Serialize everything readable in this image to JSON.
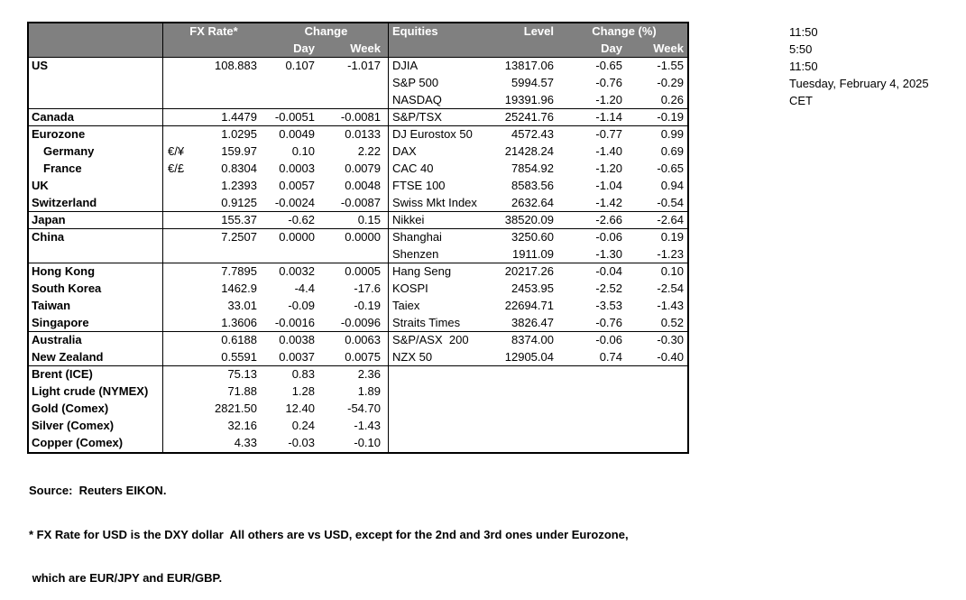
{
  "table": {
    "header": {
      "fx_rate": "FX Rate*",
      "change": "Change",
      "day": "Day",
      "week": "Week",
      "equities": "Equities",
      "level": "Level",
      "change_pct": "Change (%)"
    },
    "rows": [
      {
        "country": "US",
        "indent": false,
        "pair": "",
        "rate": "108.883",
        "day": "0.107",
        "week": "-1.017",
        "equity": "DJIA",
        "level": "13817.06",
        "eday": "-0.65",
        "eweek": "-1.55",
        "sep": false
      },
      {
        "country": "",
        "indent": false,
        "pair": "",
        "rate": "",
        "day": "",
        "week": "",
        "equity": "S&P 500",
        "level": "5994.57",
        "eday": "-0.76",
        "eweek": "-0.29",
        "sep": false
      },
      {
        "country": "",
        "indent": false,
        "pair": "",
        "rate": "",
        "day": "",
        "week": "",
        "equity": "NASDAQ",
        "level": "19391.96",
        "eday": "-1.20",
        "eweek": "0.26",
        "sep": true
      },
      {
        "country": "Canada",
        "indent": false,
        "pair": "",
        "rate": "1.4479",
        "day": "-0.0051",
        "week": "-0.0081",
        "equity": "S&P/TSX",
        "level": "25241.76",
        "eday": "-1.14",
        "eweek": "-0.19",
        "sep": true
      },
      {
        "country": "Eurozone",
        "indent": false,
        "pair": "",
        "rate": "1.0295",
        "day": "0.0049",
        "week": "0.0133",
        "equity": "DJ Eurostox 50",
        "level": "4572.43",
        "eday": "-0.77",
        "eweek": "0.99",
        "sep": false
      },
      {
        "country": "Germany",
        "indent": true,
        "pair": "€/¥",
        "rate": "159.97",
        "day": "0.10",
        "week": "2.22",
        "equity": "DAX",
        "level": "21428.24",
        "eday": "-1.40",
        "eweek": "0.69",
        "sep": false
      },
      {
        "country": "France",
        "indent": true,
        "pair": "€/£",
        "rate": "0.8304",
        "day": "0.0003",
        "week": "0.0079",
        "equity": "CAC 40",
        "level": "7854.92",
        "eday": "-1.20",
        "eweek": "-0.65",
        "sep": false
      },
      {
        "country": "UK",
        "indent": false,
        "pair": "",
        "rate": "1.2393",
        "day": "0.0057",
        "week": "0.0048",
        "equity": "FTSE 100",
        "level": "8583.56",
        "eday": "-1.04",
        "eweek": "0.94",
        "sep": false
      },
      {
        "country": "Switzerland",
        "indent": false,
        "pair": "",
        "rate": "0.9125",
        "day": "-0.0024",
        "week": "-0.0087",
        "equity": "Swiss Mkt Index",
        "level": "2632.64",
        "eday": "-1.42",
        "eweek": "-0.54",
        "sep": true
      },
      {
        "country": "Japan",
        "indent": false,
        "pair": "",
        "rate": "155.37",
        "day": "-0.62",
        "week": "0.15",
        "equity": "Nikkei",
        "level": "38520.09",
        "eday": "-2.66",
        "eweek": "-2.64",
        "sep": true
      },
      {
        "country": "China",
        "indent": false,
        "pair": "",
        "rate": "7.2507",
        "day": "0.0000",
        "week": "0.0000",
        "equity": "Shanghai",
        "level": "3250.60",
        "eday": "-0.06",
        "eweek": "0.19",
        "sep": false
      },
      {
        "country": "",
        "indent": false,
        "pair": "",
        "rate": "",
        "day": "",
        "week": "",
        "equity": "Shenzen",
        "level": "1911.09",
        "eday": "-1.30",
        "eweek": "-1.23",
        "sep": true
      },
      {
        "country": "Hong Kong",
        "indent": false,
        "pair": "",
        "rate": "7.7895",
        "day": "0.0032",
        "week": "0.0005",
        "equity": "Hang Seng",
        "level": "20217.26",
        "eday": "-0.04",
        "eweek": "0.10",
        "sep": false
      },
      {
        "country": "South Korea",
        "indent": false,
        "pair": "",
        "rate": "1462.9",
        "day": "-4.4",
        "week": "-17.6",
        "equity": "KOSPI",
        "level": "2453.95",
        "eday": "-2.52",
        "eweek": "-2.54",
        "sep": false
      },
      {
        "country": "Taiwan",
        "indent": false,
        "pair": "",
        "rate": "33.01",
        "day": "-0.09",
        "week": "-0.19",
        "equity": "Taiex",
        "level": "22694.71",
        "eday": "-3.53",
        "eweek": "-1.43",
        "sep": false
      },
      {
        "country": "Singapore",
        "indent": false,
        "pair": "",
        "rate": "1.3606",
        "day": "-0.0016",
        "week": "-0.0096",
        "equity": "Straits Times",
        "level": "3826.47",
        "eday": "-0.76",
        "eweek": "0.52",
        "sep": true
      },
      {
        "country": "Australia",
        "indent": false,
        "pair": "",
        "rate": "0.6188",
        "day": "0.0038",
        "week": "0.0063",
        "equity": "S&P/ASX  200",
        "level": "8374.00",
        "eday": "-0.06",
        "eweek": "-0.30",
        "sep": false
      },
      {
        "country": "New Zealand",
        "indent": false,
        "pair": "",
        "rate": "0.5591",
        "day": "0.0037",
        "week": "0.0075",
        "equity": "NZX 50",
        "level": "12905.04",
        "eday": "0.74",
        "eweek": "-0.40",
        "sep": true
      },
      {
        "country": "Brent (ICE)",
        "indent": false,
        "pair": "",
        "rate": "75.13",
        "day": "0.83",
        "week": "2.36",
        "equity": "",
        "level": "",
        "eday": "",
        "eweek": "",
        "sep": false
      },
      {
        "country": "Light crude (NYMEX)",
        "indent": false,
        "pair": "",
        "rate": "71.88",
        "day": "1.28",
        "week": "1.89",
        "equity": "",
        "level": "",
        "eday": "",
        "eweek": "",
        "sep": false
      },
      {
        "country": "Gold (Comex)",
        "indent": false,
        "pair": "",
        "rate": "2821.50",
        "day": "12.40",
        "week": "-54.70",
        "equity": "",
        "level": "",
        "eday": "",
        "eweek": "",
        "sep": false
      },
      {
        "country": "Silver (Comex)",
        "indent": false,
        "pair": "",
        "rate": "32.16",
        "day": "0.24",
        "week": "-1.43",
        "equity": "",
        "level": "",
        "eday": "",
        "eweek": "",
        "sep": false
      },
      {
        "country": "Copper (Comex)",
        "indent": false,
        "pair": "",
        "rate": "4.33",
        "day": "-0.03",
        "week": "-0.10",
        "equity": "",
        "level": "",
        "eday": "",
        "eweek": "",
        "sep": false
      }
    ]
  },
  "timestamps": {
    "lines": [
      "11:50",
      "5:50",
      "11:50",
      "Tuesday, February 4, 2025",
      "CET"
    ]
  },
  "footer": {
    "source": "Source:  Reuters EIKON.",
    "note_line1": "* FX Rate for USD is the DXY dollar  All others are vs USD, except for the 2nd and 3rd ones under Eurozone,",
    "note_line2": " which are EUR/JPY and EUR/GBP."
  },
  "colors": {
    "header_bg": "#808080",
    "header_text": "#FFFFFF",
    "border": "#000000",
    "text": "#000000"
  }
}
